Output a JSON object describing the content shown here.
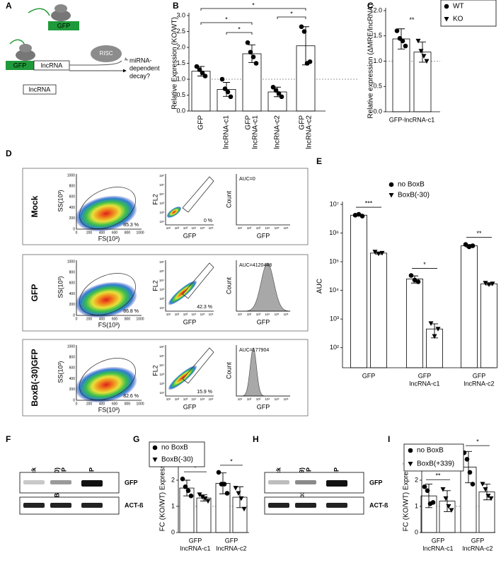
{
  "panel_a": {
    "label": "A",
    "gfp_top": "GFP",
    "gfp_bottom": "GFP",
    "lncrna_fused": "lncRNA",
    "risc": "RISC",
    "poly_a": "Aₙ",
    "decay": [
      "miRNA-",
      "dependent",
      "decay?"
    ],
    "lncrna_alone": "lncRNA"
  },
  "panel_d": {
    "label": "D",
    "rows": [
      {
        "name": "Mock",
        "scatter_gate": "85.3 %",
        "gfp_gate": "0 %",
        "auc": "AUC=0"
      },
      {
        "name": "GFP",
        "scatter_gate": "86.8 %",
        "gfp_gate": "42.3 %",
        "auc": "AUC=4120448"
      },
      {
        "name": "BoxB(-30)GFP",
        "scatter_gate": "82.6 %",
        "gfp_gate": "15.9 %",
        "auc": "AUC=177904"
      }
    ],
    "ss_label": "SS(10³)",
    "fs_label": "FS(10³)",
    "fl2_label": "FL2",
    "gfp_label": "GFP",
    "count_label": "Count",
    "linear_ticks": [
      "0",
      "200",
      "400",
      "600",
      "800",
      "1000"
    ],
    "log_ticks": [
      "10¹",
      "10²",
      "10³",
      "10⁴",
      "10⁵",
      "10⁶"
    ]
  },
  "panel_f": {
    "label": "F",
    "lanes": [
      [
        "Mock"
      ],
      [
        "BoxB(-30)",
        "GFP"
      ],
      [
        "GFP"
      ]
    ],
    "bands": [
      "GFP",
      "ACT-ß"
    ]
  },
  "panel_h": {
    "label": "H",
    "lanes": [
      [
        "Mock"
      ],
      [
        "BoxB(+339)",
        "GFP"
      ],
      [
        "GFP"
      ]
    ],
    "bands": [
      "GFP",
      "ACT-ß"
    ]
  },
  "chart_data": [
    {
      "panel": "B",
      "type": "bar",
      "y_label": "Relative Expression (KO/WT)",
      "categories": [
        [
          "GFP"
        ],
        [
          "lncRNA-c1"
        ],
        [
          "GFP",
          "lncRNA-c1"
        ],
        [
          "lncRNA-c2"
        ],
        [
          "GFP",
          "lncRNA-c2"
        ]
      ],
      "series": [
        {
          "color": "#ffffff",
          "marker": "circle",
          "values": [
            1.25,
            0.68,
            1.8,
            0.6,
            2.05
          ],
          "errors": [
            0.15,
            0.22,
            0.28,
            0.15,
            0.6
          ],
          "points": [
            [
              1.4,
              1.3,
              1.2,
              1.1
            ],
            [
              1.0,
              0.7,
              0.6,
              0.45
            ],
            [
              2.15,
              1.85,
              1.7,
              1.5
            ],
            [
              0.75,
              0.65,
              0.55,
              0.45
            ],
            [
              2.65,
              2.5,
              1.5,
              1.55
            ]
          ]
        }
      ],
      "ylim": [
        0,
        3
      ],
      "yticks": [
        {
          "value": 0,
          "label": "0.0"
        },
        0.5,
        {
          "value": 1,
          "label": "1.0"
        },
        1.5,
        {
          "value": 2,
          "label": "2.0"
        },
        2.5,
        {
          "value": 3,
          "label": "3.0"
        }
      ],
      "reference_line": 1,
      "significance_pairs": [
        {
          "categories": [
            0,
            4
          ],
          "label": "*"
        },
        {
          "categories": [
            0,
            2
          ],
          "label": "*"
        },
        {
          "categories": [
            1,
            2
          ],
          "label": "*"
        },
        {
          "categories": [
            3,
            4
          ],
          "label": "*"
        }
      ]
    },
    {
      "panel": "C",
      "type": "bar",
      "y_label": "Relative expression (ΔMRE/lncRNA)",
      "categories": [
        [
          "GFP-lncRNA-c1"
        ]
      ],
      "series": [
        {
          "name": "WT",
          "color": "#ffffff",
          "marker": "circle",
          "values": [
            1.44
          ],
          "errors": [
            0.2
          ],
          "points": [
            [
              1.6,
              1.45,
              1.4,
              1.3
            ]
          ]
        },
        {
          "name": "KO",
          "color": "#ffffff",
          "marker": "triangle",
          "values": [
            1.18
          ],
          "errors": [
            0.2
          ],
          "points": [
            [
              1.4,
              1.2,
              1.1,
              1.0
            ]
          ]
        }
      ],
      "ylim": [
        0,
        2
      ],
      "yticks": [
        {
          "value": 0,
          "label": "0.0"
        },
        0.5,
        {
          "value": 1,
          "label": "1.0"
        },
        1.5,
        {
          "value": 2,
          "label": "2.0"
        }
      ],
      "reference_line": 1,
      "legend": "upper right",
      "significance": [
        "**"
      ]
    },
    {
      "panel": "E",
      "type": "bar",
      "y_label": "AUC",
      "log_scale": true,
      "categories": [
        [
          "GFP"
        ],
        [
          "GFP",
          "lncRNA-c1"
        ],
        [
          "GFP",
          "lncRNA-c2"
        ]
      ],
      "series": [
        {
          "name": "no BoxB",
          "color": "#ffffff",
          "marker": "circle",
          "values": [
            4200000,
            25000,
            360000
          ],
          "errors": [
            300000,
            7000,
            40000
          ],
          "points": [
            [
              4200000,
              4500000,
              3900000
            ],
            [
              33000,
              23000,
              20000
            ],
            [
              400000,
              330000,
              360000
            ]
          ]
        },
        {
          "name": "BoxB(-30)",
          "color": "#ffffff",
          "marker": "triangle",
          "values": [
            200000,
            450,
            17000
          ],
          "errors": [
            15000,
            230,
            1500
          ],
          "points": [
            [
              220000,
              190000,
              200000
            ],
            [
              700,
              250,
              450
            ],
            [
              18000,
              16000,
              17000
            ]
          ]
        }
      ],
      "ylim": [
        20,
        10000000
      ],
      "yticks": [
        {
          "value": 100,
          "label": "10²"
        },
        {
          "value": 1000,
          "label": "10³"
        },
        {
          "value": 10000,
          "label": "10⁴"
        },
        {
          "value": 100000,
          "label": "10⁵"
        },
        {
          "value": 1000000,
          "label": "10⁶"
        },
        {
          "value": 10000000,
          "label": "10⁷"
        }
      ],
      "legend": "upper left",
      "significance": [
        "***",
        "*",
        "**"
      ]
    },
    {
      "panel": "G",
      "type": "bar",
      "y_label": "FC (KO/WT) Expression",
      "categories": [
        [
          "GFP",
          "lncRNA-c1"
        ],
        [
          "GFP",
          "lncRNA-c2"
        ]
      ],
      "series": [
        {
          "name": "no BoxB",
          "color": "#ffffff",
          "marker": "circle",
          "values": [
            1.7,
            1.88
          ],
          "errors": [
            0.3,
            0.4
          ],
          "points": [
            [
              2.05,
              1.75,
              1.6,
              1.4
            ],
            [
              2.3,
              1.85,
              1.85,
              1.5
            ]
          ]
        },
        {
          "name": "BoxB(-30)",
          "color": "#ffffff",
          "marker": "triangle",
          "values": [
            1.32,
            1.35
          ],
          "errors": [
            0.12,
            0.4
          ],
          "points": [
            [
              1.45,
              1.35,
              1.3,
              1.2
            ],
            [
              1.7,
              1.5,
              1.3,
              0.9
            ]
          ]
        }
      ],
      "ylim": [
        0,
        3
      ],
      "yticks": [
        0,
        1,
        2,
        3
      ],
      "reference_line": 1,
      "legend": "upper left",
      "significance": [
        "*",
        "*"
      ]
    },
    {
      "panel": "I",
      "type": "bar",
      "y_label": "FC (KO/WT) Expression",
      "categories": [
        [
          "GFP",
          "lncRNA-c1"
        ],
        [
          "GFP",
          "lncRNA-c2"
        ]
      ],
      "series": [
        {
          "name": "no BoxB",
          "color": "#ffffff",
          "marker": "circle",
          "values": [
            1.4,
            2.5
          ],
          "errors": [
            0.45,
            0.6
          ],
          "points": [
            [
              1.75,
              1.6,
              1.1,
              1.15
            ],
            [
              3.05,
              2.8,
              2.3,
              1.85
            ]
          ]
        },
        {
          "name": "BoxB(+339)",
          "color": "#ffffff",
          "marker": "triangle",
          "values": [
            1.2,
            1.55
          ],
          "errors": [
            0.4,
            0.3
          ],
          "points": [
            [
              1.65,
              1.3,
              1.0,
              0.85
            ],
            [
              1.85,
              1.65,
              1.4,
              1.3
            ]
          ]
        }
      ],
      "ylim": [
        0,
        3
      ],
      "yticks": [
        0,
        1,
        2,
        3
      ],
      "reference_line": 1,
      "legend": "upper left",
      "significance": [
        "**",
        "*"
      ]
    }
  ]
}
